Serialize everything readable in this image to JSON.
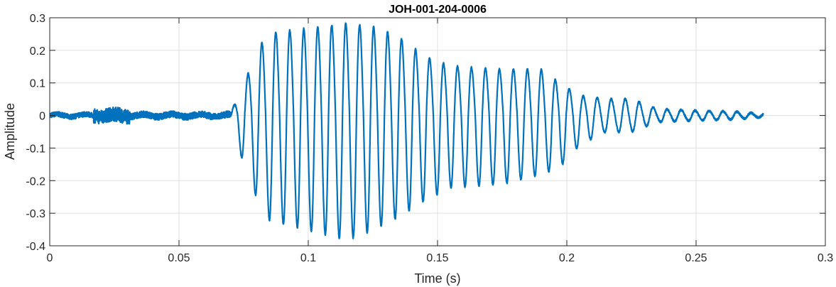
{
  "chart_data": {
    "type": "line",
    "title": "JOH-001-204-0006",
    "xlabel": "Time (s)",
    "ylabel": "Amplitude",
    "xlim": [
      0,
      0.3
    ],
    "ylim": [
      -0.4,
      0.3
    ],
    "xticks": [
      0,
      0.05,
      0.1,
      0.15,
      0.2,
      0.25,
      0.3
    ],
    "xtick_labels": [
      "0",
      "0.05",
      "0.1",
      "0.15",
      "0.2",
      "0.25",
      "0.3"
    ],
    "yticks": [
      -0.4,
      -0.3,
      -0.2,
      -0.1,
      0,
      0.1,
      0.2,
      0.3
    ],
    "ytick_labels": [
      "-0.4",
      "-0.3",
      "-0.2",
      "-0.1",
      "0",
      "0.1",
      "0.2",
      "0.3"
    ],
    "grid": true,
    "line_color": "#0072BD",
    "series": [
      {
        "x_start": 0,
        "x_end": 0.276,
        "segments": [
          {
            "type": "noise",
            "t0": 0.0,
            "t1": 0.017,
            "amp": 0.008
          },
          {
            "type": "noise",
            "t0": 0.017,
            "t1": 0.031,
            "amp": 0.022
          },
          {
            "type": "noise",
            "t0": 0.031,
            "t1": 0.07,
            "amp": 0.01
          },
          {
            "type": "oscillation",
            "t0": 0.07,
            "t1": 0.276,
            "freq_hz": 185,
            "envelope": [
              [
                0.07,
                0.01,
                0.01
              ],
              [
                0.075,
                0.09,
                0.15
              ],
              [
                0.08,
                0.2,
                0.25
              ],
              [
                0.085,
                0.25,
                0.32
              ],
              [
                0.095,
                0.26,
                0.34
              ],
              [
                0.105,
                0.27,
                0.36
              ],
              [
                0.115,
                0.28,
                0.38
              ],
              [
                0.125,
                0.27,
                0.35
              ],
              [
                0.135,
                0.24,
                0.31
              ],
              [
                0.145,
                0.18,
                0.26
              ],
              [
                0.155,
                0.15,
                0.22
              ],
              [
                0.175,
                0.14,
                0.21
              ],
              [
                0.19,
                0.14,
                0.18
              ],
              [
                0.197,
                0.1,
                0.16
              ],
              [
                0.205,
                0.06,
                0.09
              ],
              [
                0.215,
                0.05,
                0.05
              ],
              [
                0.225,
                0.05,
                0.05
              ],
              [
                0.235,
                0.02,
                0.02
              ],
              [
                0.25,
                0.015,
                0.015
              ],
              [
                0.265,
                0.012,
                0.012
              ],
              [
                0.276,
                0.005,
                0.005
              ]
            ]
          }
        ]
      }
    ]
  }
}
